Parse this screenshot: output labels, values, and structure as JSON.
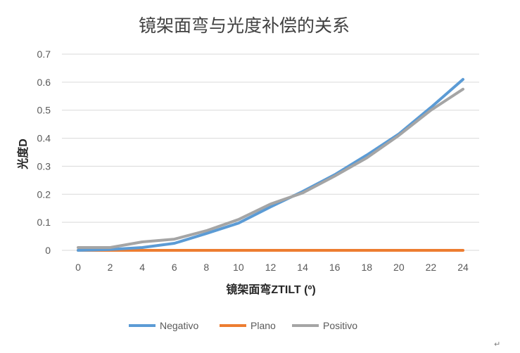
{
  "chart_data": {
    "type": "line",
    "title": "镜架面弯与光度补偿的关系",
    "xlabel": "镜架面弯ZTILT (º)",
    "ylabel": "光度D",
    "x": [
      0,
      2,
      4,
      6,
      8,
      10,
      12,
      14,
      16,
      18,
      20,
      22,
      24
    ],
    "xlim": [
      0,
      24
    ],
    "ylim": [
      0,
      0.7
    ],
    "yticks": [
      "0",
      "0.1",
      "0.2",
      "0.3",
      "0.4",
      "0.5",
      "0.6",
      "0.7"
    ],
    "grid": true,
    "legend_position": "bottom",
    "series": [
      {
        "name": "Negativo",
        "color": "#5b9bd5",
        "values": [
          0.0,
          0.003,
          0.01,
          0.025,
          0.06,
          0.097,
          0.155,
          0.21,
          0.27,
          0.34,
          0.415,
          0.51,
          0.61
        ]
      },
      {
        "name": "Plano",
        "color": "#ed7d31",
        "values": [
          0,
          0,
          0,
          0,
          0,
          0,
          0,
          0,
          0,
          0,
          0,
          0,
          0
        ]
      },
      {
        "name": "Positivo",
        "color": "#a5a5a5",
        "values": [
          0.01,
          0.01,
          0.03,
          0.04,
          0.07,
          0.11,
          0.165,
          0.205,
          0.265,
          0.33,
          0.41,
          0.5,
          0.575
        ]
      }
    ]
  },
  "page": {
    "corner_mark": "↵"
  }
}
